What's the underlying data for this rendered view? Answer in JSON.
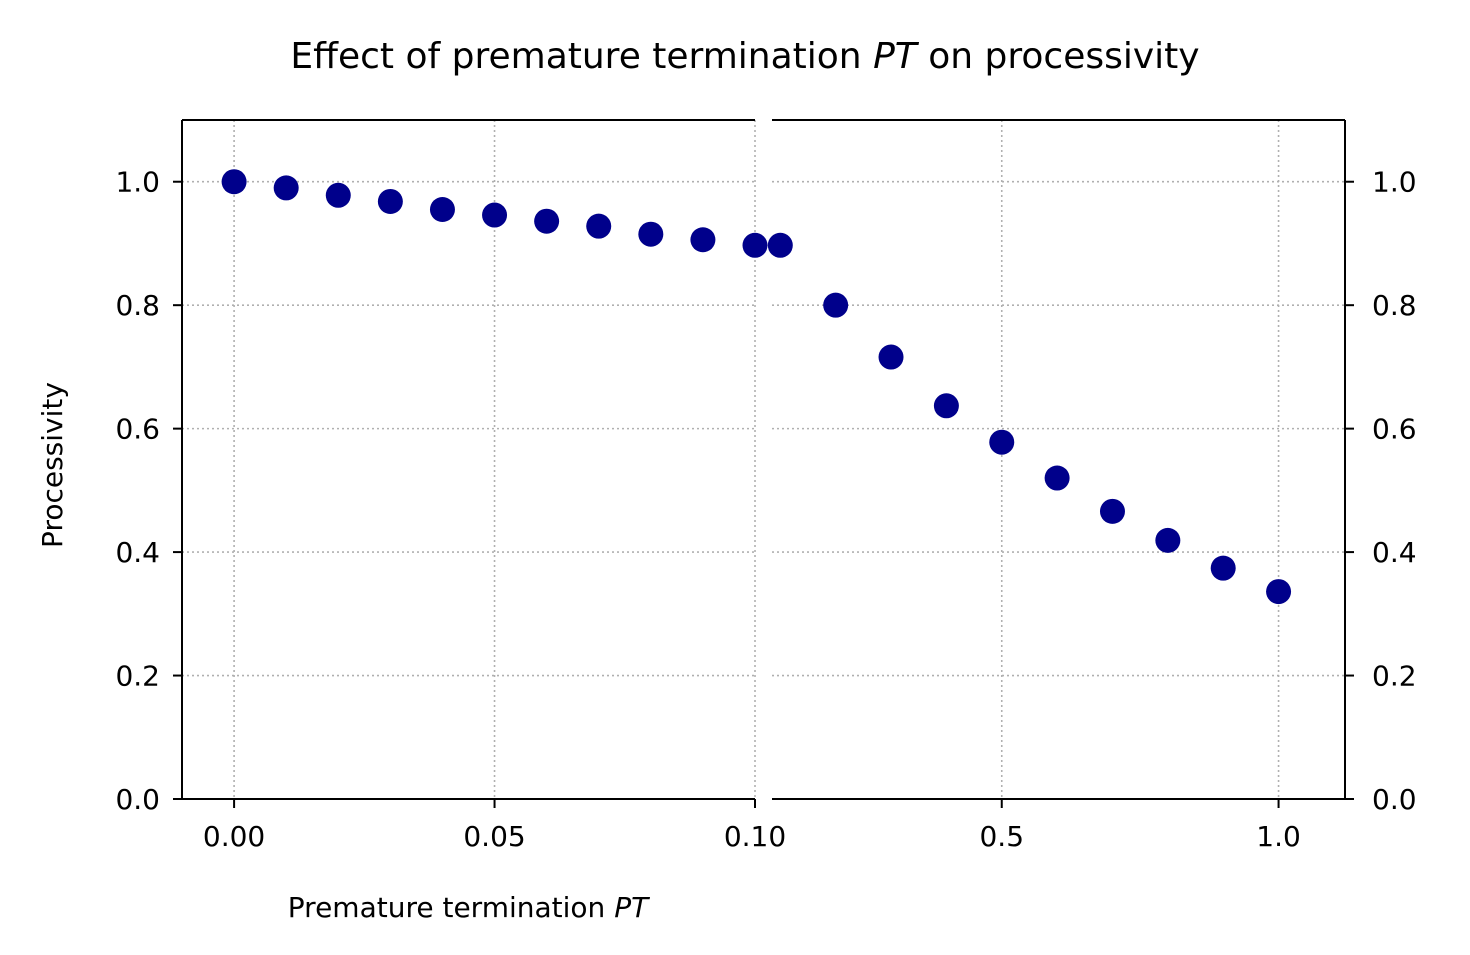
{
  "chart_data": {
    "type": "scatter",
    "title_prefix": "Effect of premature termination ",
    "title_italic": "PT",
    "title_suffix": " on processivity",
    "xlabel_prefix": "Premature termination ",
    "xlabel_italic": "PT",
    "ylabel": "Processivity",
    "ylim": [
      0,
      1.1
    ],
    "y_ticks": [
      0.0,
      0.2,
      0.4,
      0.6,
      0.8,
      1.0
    ],
    "y_tick_labels": [
      "0.0",
      "0.2",
      "0.4",
      "0.6",
      "0.8",
      "1.0"
    ],
    "grid": true,
    "marker_color": "#00008b",
    "left_panel": {
      "xlim": [
        -0.01,
        0.1
      ],
      "x_ticks": [
        0.0,
        0.05,
        0.1
      ],
      "x_tick_labels": [
        "0.00",
        "0.05",
        "0.10"
      ],
      "x": [
        0.0,
        0.01,
        0.02,
        0.03,
        0.04,
        0.05,
        0.06,
        0.07,
        0.08,
        0.09,
        0.1
      ],
      "y": [
        1.0,
        0.99,
        0.978,
        0.968,
        0.955,
        0.946,
        0.936,
        0.928,
        0.915,
        0.906,
        0.897
      ]
    },
    "right_panel": {
      "xlim": [
        0.085,
        1.12
      ],
      "x_ticks": [
        0.5,
        1.0
      ],
      "x_tick_labels": [
        "0.5",
        "1.0"
      ],
      "x": [
        0.1,
        0.2,
        0.3,
        0.4,
        0.5,
        0.6,
        0.7,
        0.8,
        0.9,
        1.0
      ],
      "y": [
        0.897,
        0.8,
        0.716,
        0.637,
        0.578,
        0.52,
        0.466,
        0.419,
        0.374,
        0.336
      ]
    }
  }
}
